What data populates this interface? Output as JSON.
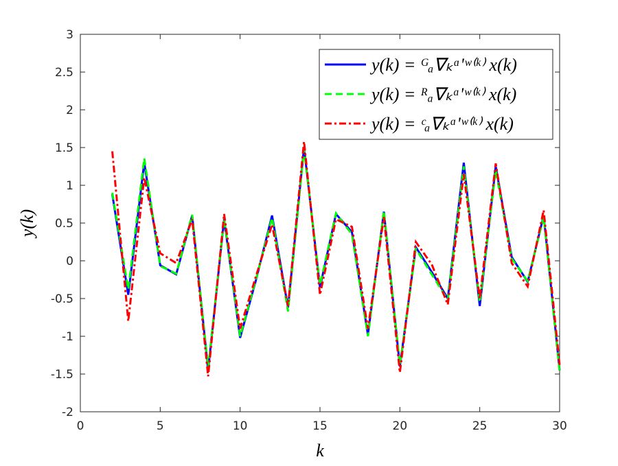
{
  "chart_data": {
    "type": "line",
    "xlabel": "k",
    "ylabel": "y(k)",
    "x": [
      2,
      3,
      4,
      5,
      6,
      7,
      8,
      9,
      10,
      11,
      12,
      13,
      14,
      15,
      16,
      17,
      18,
      19,
      20,
      21,
      22,
      23,
      24,
      25,
      26,
      27,
      28,
      29,
      30
    ],
    "series": [
      {
        "name": "y(k) = ᴳₐ∇ₖᵅ'ʷ⁽ᵏ⁾ x(k)",
        "color": "#0000ff",
        "linestyle": "-",
        "values": [
          0.88,
          -0.45,
          1.3,
          -0.06,
          -0.18,
          0.6,
          -1.45,
          0.55,
          -1.02,
          -0.25,
          0.6,
          -0.62,
          1.5,
          -0.35,
          0.62,
          0.38,
          -0.98,
          0.65,
          -1.4,
          0.18,
          -0.15,
          -0.5,
          1.3,
          -0.6,
          1.25,
          0.05,
          -0.28,
          0.6,
          -1.45
        ]
      },
      {
        "name": "y(k) = ᴿₐ∇ₖᵅ'ʷ⁽ᵏ⁾ x(k)",
        "color": "#00ff00",
        "linestyle": "--",
        "values": [
          0.9,
          -0.38,
          1.36,
          -0.07,
          -0.17,
          0.61,
          -1.42,
          0.56,
          -1.0,
          -0.24,
          0.57,
          -0.67,
          1.48,
          -0.32,
          0.63,
          0.35,
          -1.0,
          0.66,
          -1.38,
          0.16,
          -0.18,
          -0.52,
          1.25,
          -0.55,
          1.2,
          0.03,
          -0.27,
          0.58,
          -1.47
        ]
      },
      {
        "name": "y(k) = ᶜₐ∇ₖᵅ'ʷ⁽ᵏ⁾ x(k)",
        "color": "#ff0000",
        "linestyle": "-.",
        "values": [
          1.45,
          -0.8,
          1.1,
          0.1,
          -0.03,
          0.55,
          -1.53,
          0.62,
          -0.9,
          -0.2,
          0.48,
          -0.6,
          1.58,
          -0.45,
          0.55,
          0.45,
          -0.9,
          0.58,
          -1.48,
          0.25,
          -0.05,
          -0.58,
          1.15,
          -0.5,
          1.29,
          -0.03,
          -0.34,
          0.67,
          -1.38
        ]
      }
    ],
    "xlim": [
      0,
      30
    ],
    "xticks": [
      0,
      5,
      10,
      15,
      20,
      25,
      30
    ],
    "ylim": [
      -2,
      3
    ],
    "yticks": [
      -2,
      -1.5,
      -1,
      -0.5,
      0,
      0.5,
      1,
      1.5,
      2,
      2.5,
      3
    ],
    "grid": false,
    "legend": "northeast"
  }
}
